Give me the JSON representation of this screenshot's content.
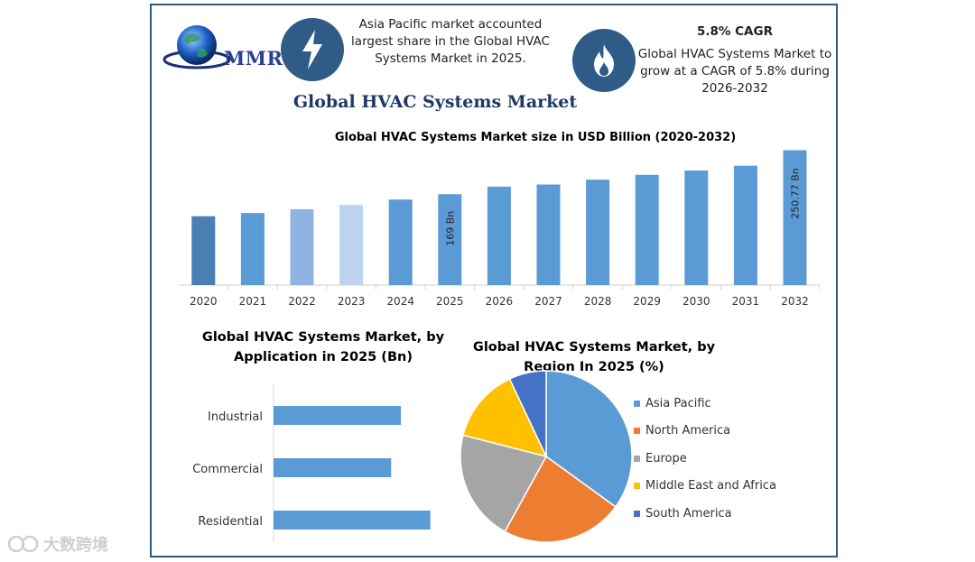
{
  "header": {
    "logo_text": "MMR",
    "asia_callout": [
      "Asia Pacific market accounted",
      "largest share in the Global HVAC",
      "Systems Market in 2025."
    ],
    "cagr_title": "5.8% CAGR",
    "cagr_text": [
      "Global HVAC Systems Market to",
      "grow at a CAGR of 5.8% during",
      "2026-2032"
    ]
  },
  "main_title": "Global HVAC Systems Market",
  "watermark": "大数跨境",
  "chart_data": [
    {
      "type": "bar",
      "title": "Global HVAC Systems Market size in USD Billion (2020-2032)",
      "categories": [
        "2020",
        "2021",
        "2022",
        "2023",
        "2024",
        "2025",
        "2026",
        "2027",
        "2028",
        "2029",
        "2030",
        "2031",
        "2032"
      ],
      "values": [
        128,
        134,
        141,
        149,
        159,
        169,
        183,
        187,
        196,
        205,
        213,
        222,
        250.77
      ],
      "colors": [
        "#4a7fb5",
        "#5b9bd5",
        "#8fb4e3",
        "#bdd3ee",
        "#5b9bd5",
        "#5b9bd5",
        "#5b9bd5",
        "#5b9bd5",
        "#5b9bd5",
        "#5b9bd5",
        "#5b9bd5",
        "#5b9bd5",
        "#5b9bd5"
      ],
      "data_labels": {
        "2025": "169 Bn",
        "2032": "250.77 Bn"
      },
      "ylim": [
        0,
        255
      ],
      "xlabel": "",
      "ylabel": ""
    },
    {
      "type": "bar",
      "orientation": "horizontal",
      "title": [
        "Global HVAC Systems Market, by",
        "Application in 2025 (Bn)"
      ],
      "categories": [
        "Industrial",
        "Commercial",
        "Residential"
      ],
      "values": [
        52,
        48,
        64
      ],
      "color": "#5b9bd5",
      "xlim": [
        0,
        70
      ]
    },
    {
      "type": "pie",
      "title": [
        "Global HVAC Systems Market, by",
        "Region In 2025 (%)"
      ],
      "labels": [
        "Asia Pacific",
        "North America",
        "Europe",
        "Middle East and Africa",
        "South America"
      ],
      "values": [
        35,
        23,
        21,
        14,
        7
      ],
      "colors": [
        "#5b9bd5",
        "#ed7d31",
        "#a5a5a5",
        "#ffc000",
        "#4472c4"
      ],
      "legend_position": "right"
    }
  ]
}
